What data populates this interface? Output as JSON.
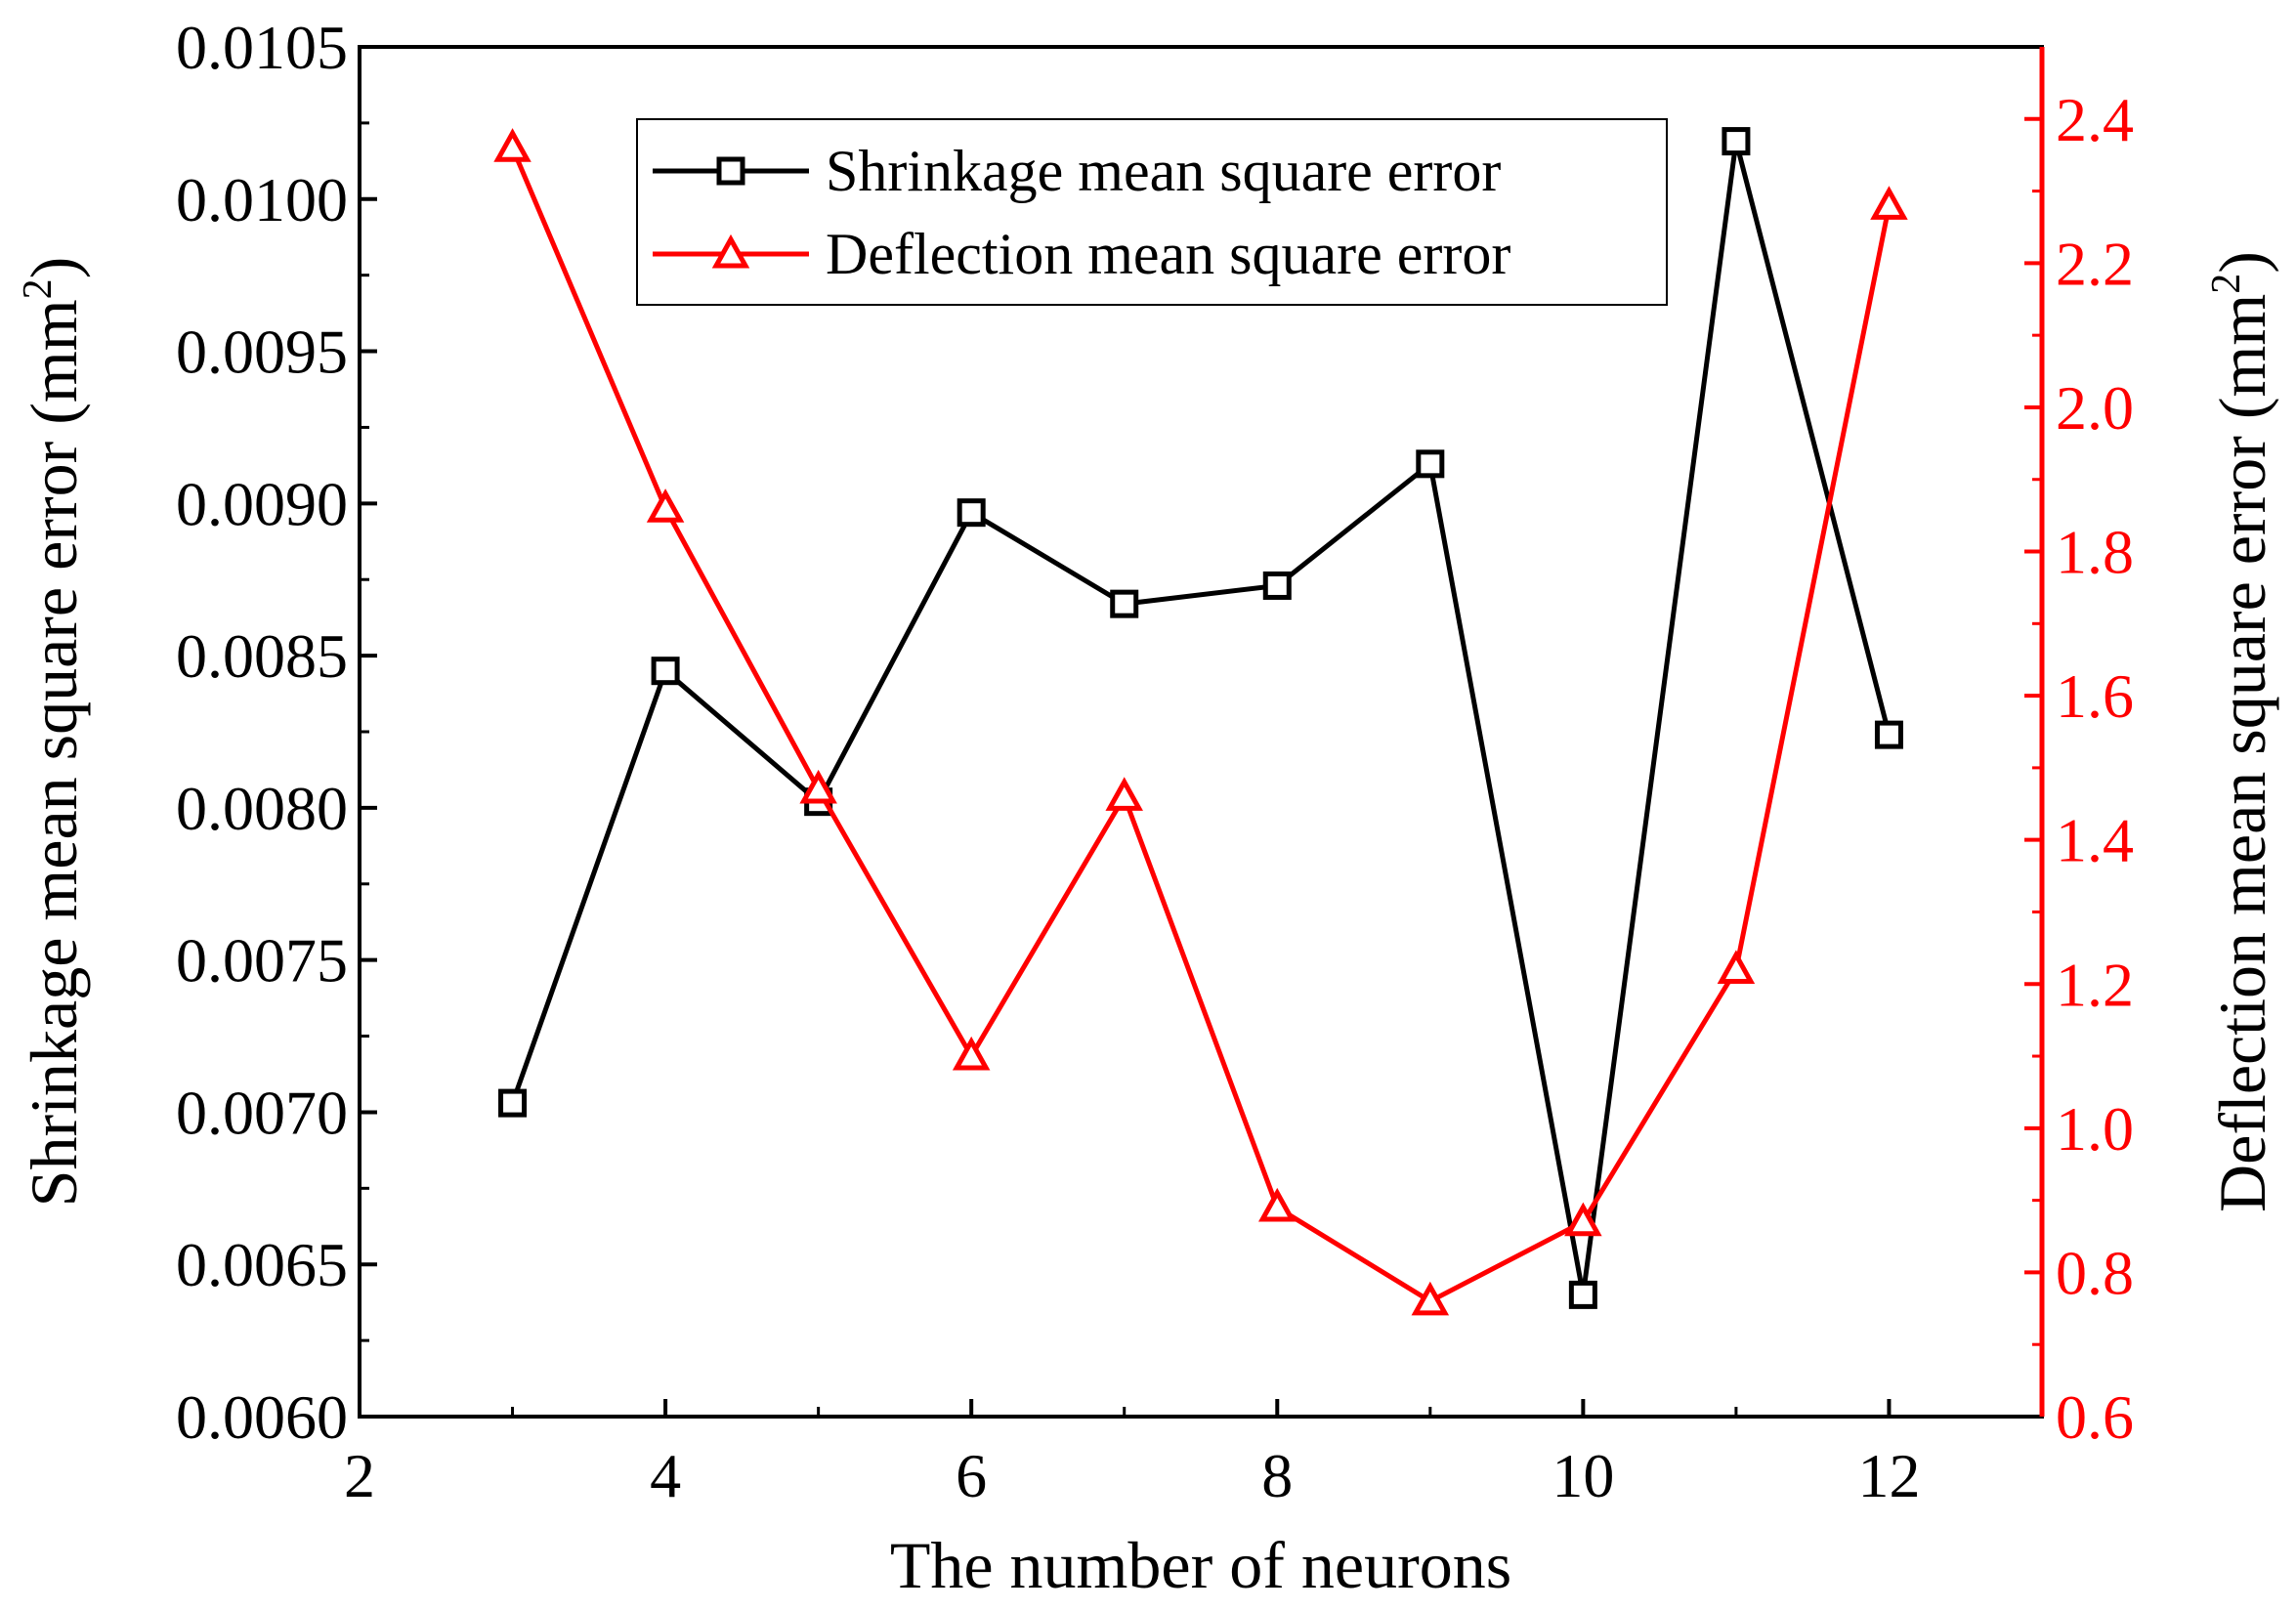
{
  "chart_data": {
    "type": "line",
    "xlabel": "The number of neurons",
    "ylabel_left": "Shrinkage mean square error (mm",
    "ylabel_right": "Deflection mean square error (mm",
    "ylabel_sup": "2",
    "ylabel_close": ")",
    "xlim": [
      2,
      13
    ],
    "ylim_left": [
      0.006,
      0.0105
    ],
    "ylim_right": [
      0.6,
      2.5
    ],
    "x_ticks": [
      "2",
      "4",
      "6",
      "8",
      "10",
      "12"
    ],
    "x_tick_values": [
      2,
      4,
      6,
      8,
      10,
      12
    ],
    "y_left_ticks": [
      "0.0060",
      "0.0065",
      "0.0070",
      "0.0075",
      "0.0080",
      "0.0085",
      "0.0090",
      "0.0095",
      "0.0100",
      "0.0105"
    ],
    "y_left_tick_values": [
      0.006,
      0.0065,
      0.007,
      0.0075,
      0.008,
      0.0085,
      0.009,
      0.0095,
      0.01,
      0.0105
    ],
    "y_right_ticks": [
      "0.6",
      "0.8",
      "1.0",
      "1.2",
      "1.4",
      "1.6",
      "1.8",
      "2.0",
      "2.2",
      "2.4"
    ],
    "y_right_tick_values": [
      0.6,
      0.8,
      1.0,
      1.2,
      1.4,
      1.6,
      1.8,
      2.0,
      2.2,
      2.4
    ],
    "x": [
      3,
      4,
      5,
      6,
      7,
      8,
      9,
      10,
      11,
      12
    ],
    "series": [
      {
        "name": "Shrinkage mean square error",
        "axis": "left",
        "marker": "square",
        "color": "#000000",
        "values": [
          0.00703,
          0.00845,
          0.00802,
          0.00897,
          0.00867,
          0.00873,
          0.00913,
          0.0064,
          0.01019,
          0.00824
        ]
      },
      {
        "name": "Deflection mean square error",
        "axis": "right",
        "marker": "triangle",
        "color": "#ff0000",
        "values": [
          2.36,
          1.86,
          1.47,
          1.1,
          1.46,
          0.89,
          0.76,
          0.87,
          1.22,
          2.28
        ]
      }
    ],
    "legend_position": "top-center"
  }
}
